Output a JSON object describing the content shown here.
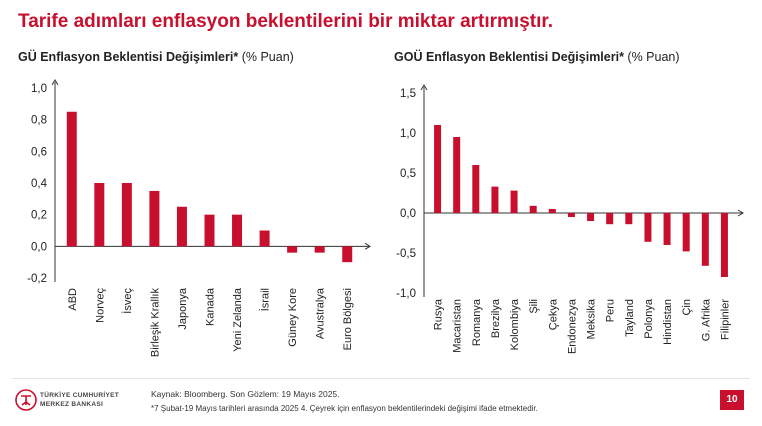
{
  "slide": {
    "title": "Tarife adımları enflasyon beklentilerini bir miktar artırmıştır.",
    "footer": {
      "source": "Kaynak: Bloomberg. Son Gözlem: 19 Mayıs 2025.",
      "note": "*7 Şubat-19 Mayıs tarihleri arasında 2025 4. Çeyrek için enflasyon beklentilerindeki değişimi ifade etmektedir.",
      "logo_line1": "TÜRKİYE CUMHURİYET",
      "logo_line2": "MERKEZ BANKASI",
      "page_number": "10"
    }
  },
  "colors": {
    "bar": "#c8102e",
    "title": "#c8102e",
    "axis": "#333333"
  },
  "chart_data": [
    {
      "type": "bar",
      "title": "GÜ Enflasyon Beklentisi Değişimleri*",
      "title_unit": "(% Puan)",
      "categories": [
        "ABD",
        "Norveç",
        "İsveç",
        "Birleşik Krallık",
        "Japonya",
        "Kanada",
        "Yeni Zelanda",
        "İsrail",
        "Güney Kore",
        "Avustralya",
        "Euro Bölgesi"
      ],
      "values": [
        0.85,
        0.4,
        0.4,
        0.35,
        0.25,
        0.2,
        0.2,
        0.1,
        -0.04,
        -0.04,
        -0.1
      ],
      "ylim": [
        -0.2,
        1.0
      ],
      "yticks": [
        "-0,2",
        "0,0",
        "0,2",
        "0,4",
        "0,6",
        "0,8",
        "1,0"
      ],
      "ytick_values": [
        -0.2,
        0.0,
        0.2,
        0.4,
        0.6,
        0.8,
        1.0
      ]
    },
    {
      "type": "bar",
      "title": "GOÜ Enflasyon Beklentisi Değişimleri*",
      "title_unit": "(% Puan)",
      "categories": [
        "Rusya",
        "Macaristan",
        "Romanya",
        "Brezilya",
        "Kolombiya",
        "Şili",
        "Çekya",
        "Endonezya",
        "Meksika",
        "Peru",
        "Tayland",
        "Polonya",
        "Hindistan",
        "Çin",
        "G. Afrika",
        "Filipinler"
      ],
      "values": [
        1.1,
        0.95,
        0.6,
        0.33,
        0.28,
        0.09,
        0.05,
        -0.05,
        -0.1,
        -0.14,
        -0.14,
        -0.36,
        -0.4,
        -0.48,
        -0.66,
        -0.8
      ],
      "ylim": [
        -1.0,
        1.5
      ],
      "yticks": [
        "-1,0",
        "-0,5",
        "0,0",
        "0,5",
        "1,0",
        "1,5"
      ],
      "ytick_values": [
        -1.0,
        -0.5,
        0.0,
        0.5,
        1.0,
        1.5
      ]
    }
  ]
}
